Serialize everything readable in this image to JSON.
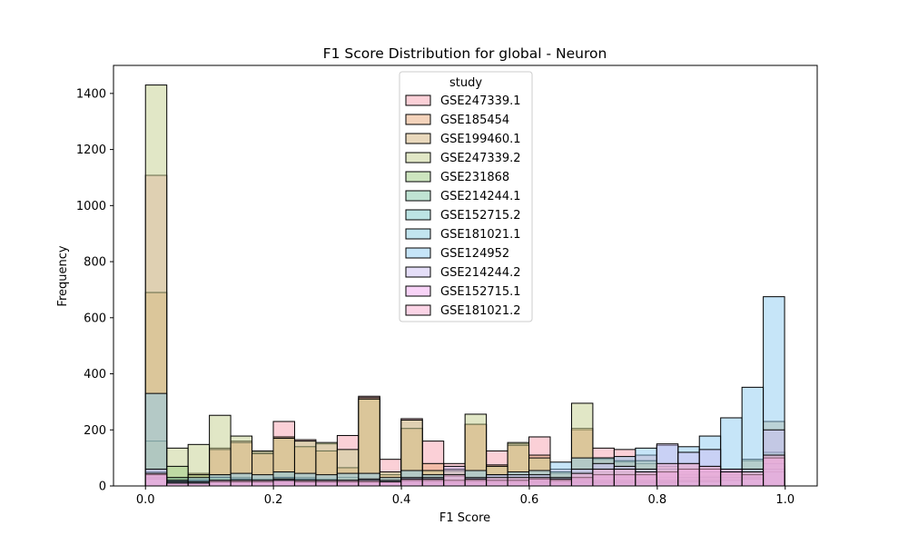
{
  "chart_data": {
    "type": "bar",
    "subtype": "overlaid-histogram",
    "title": "F1 Score Distribution for global - Neuron",
    "xlabel": "F1 Score",
    "ylabel": "Frequency",
    "xlim": [
      -0.05,
      1.05
    ],
    "ylim": [
      0,
      1500
    ],
    "xticks": [
      0.0,
      0.2,
      0.4,
      0.6,
      0.8,
      1.0
    ],
    "xtick_labels": [
      "0.0",
      "0.2",
      "0.4",
      "0.6",
      "0.8",
      "1.0"
    ],
    "yticks": [
      0,
      200,
      400,
      600,
      800,
      1000,
      1200,
      1400
    ],
    "ytick_labels": [
      "0",
      "200",
      "400",
      "600",
      "800",
      "1000",
      "1200",
      "1400"
    ],
    "bin_start": 0.0,
    "bin_width": 0.0333,
    "legend": {
      "title": "study",
      "position": "top-center"
    },
    "series": [
      {
        "name": "GSE247339.1",
        "color": "#f8a1b0",
        "values": [
          1108,
          30,
          40,
          135,
          160,
          120,
          230,
          165,
          150,
          180,
          320,
          95,
          240,
          160,
          80,
          220,
          125,
          150,
          175,
          60,
          200,
          135,
          130,
          110,
          70,
          60,
          50,
          40,
          60,
          40
        ]
      },
      {
        "name": "GSE185454",
        "color": "#eaa777",
        "values": [
          690,
          20,
          45,
          130,
          155,
          115,
          175,
          140,
          125,
          65,
          315,
          40,
          205,
          80,
          60,
          220,
          75,
          145,
          110,
          45,
          205,
          95,
          85,
          80,
          70,
          80,
          70,
          60,
          90,
          70
        ]
      },
      {
        "name": "GSE199460.1",
        "color": "#d4b27a",
        "values": [
          160,
          10,
          20,
          40,
          30,
          25,
          50,
          30,
          25,
          30,
          20,
          15,
          25,
          20,
          15,
          25,
          20,
          20,
          20,
          15,
          30,
          30,
          30,
          30,
          30,
          40,
          35,
          40,
          60,
          230
        ]
      },
      {
        "name": "GSE247339.2",
        "color": "#c4d08e",
        "values": [
          1430,
          135,
          148,
          252,
          178,
          125,
          170,
          160,
          155,
          130,
          310,
          50,
          235,
          55,
          55,
          256,
          70,
          155,
          100,
          50,
          295,
          100,
          90,
          90,
          60,
          60,
          50,
          50,
          95,
          120
        ]
      },
      {
        "name": "GSE231868",
        "color": "#9ccc80",
        "values": [
          50,
          70,
          40,
          30,
          25,
          20,
          30,
          25,
          20,
          20,
          20,
          15,
          25,
          20,
          15,
          20,
          20,
          20,
          20,
          15,
          25,
          20,
          20,
          20,
          20,
          30,
          30,
          40,
          60,
          120
        ]
      },
      {
        "name": "GSE214244.1",
        "color": "#80c8a8",
        "values": [
          40,
          30,
          20,
          20,
          15,
          15,
          20,
          15,
          15,
          15,
          15,
          10,
          20,
          15,
          10,
          15,
          15,
          15,
          15,
          10,
          20,
          15,
          15,
          15,
          15,
          20,
          20,
          30,
          40,
          80
        ]
      },
      {
        "name": "GSE152715.2",
        "color": "#7acaca",
        "values": [
          30,
          20,
          15,
          15,
          10,
          10,
          15,
          10,
          10,
          10,
          10,
          10,
          15,
          10,
          10,
          10,
          10,
          10,
          10,
          10,
          15,
          10,
          10,
          10,
          10,
          15,
          15,
          20,
          30,
          60
        ]
      },
      {
        "name": "GSE181021.1",
        "color": "#86cce0",
        "values": [
          25,
          15,
          10,
          10,
          10,
          10,
          10,
          10,
          10,
          10,
          10,
          10,
          10,
          10,
          10,
          10,
          10,
          10,
          10,
          10,
          10,
          10,
          10,
          10,
          10,
          15,
          15,
          20,
          25,
          50
        ]
      },
      {
        "name": "GSE124952",
        "color": "#8ecbf2",
        "values": [
          330,
          20,
          30,
          40,
          45,
          40,
          50,
          45,
          40,
          45,
          45,
          30,
          55,
          40,
          35,
          55,
          40,
          50,
          55,
          85,
          100,
          100,
          105,
          135,
          145,
          140,
          178,
          243,
          352,
          675
        ]
      },
      {
        "name": "GSE214244.2",
        "color": "#cbbef2",
        "values": [
          60,
          15,
          15,
          20,
          20,
          20,
          25,
          20,
          20,
          20,
          25,
          20,
          30,
          30,
          70,
          30,
          40,
          40,
          40,
          30,
          60,
          80,
          70,
          60,
          150,
          120,
          130,
          60,
          60,
          200
        ]
      },
      {
        "name": "GSE152715.1",
        "color": "#f1a8f0",
        "values": [
          40,
          10,
          10,
          15,
          15,
          15,
          20,
          15,
          15,
          15,
          15,
          15,
          20,
          20,
          20,
          20,
          20,
          20,
          25,
          20,
          30,
          40,
          40,
          40,
          50,
          60,
          60,
          60,
          40,
          100
        ]
      },
      {
        "name": "GSE181021.2",
        "color": "#f7a9cd",
        "values": [
          45,
          10,
          10,
          20,
          20,
          20,
          20,
          20,
          20,
          20,
          20,
          15,
          25,
          25,
          40,
          25,
          30,
          30,
          30,
          25,
          45,
          60,
          60,
          50,
          80,
          80,
          70,
          50,
          50,
          110
        ]
      }
    ]
  }
}
